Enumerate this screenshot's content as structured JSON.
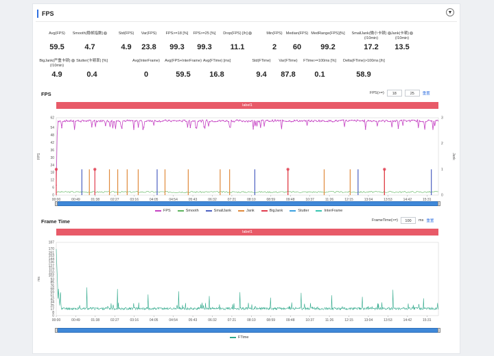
{
  "panel": {
    "title": "FPS"
  },
  "metrics_row1": [
    {
      "label": "Avg(FPS)",
      "value": "59.5",
      "help": false
    },
    {
      "label": "Smooth(稳帧指数)",
      "value": "4.7",
      "help": true
    },
    {
      "label": "Std(FPS)",
      "value": "4.9",
      "help": false
    },
    {
      "label": "Var(FPS)",
      "value": "23.8",
      "help": false
    },
    {
      "label": "FPS>=18 [%]",
      "value": "99.3",
      "help": false
    },
    {
      "label": "FPS>=25 [%]",
      "value": "99.3",
      "help": false
    },
    {
      "label": "Drop(FPS) [/h]",
      "value": "11.1",
      "help": true
    },
    {
      "label": "Min(FPS)",
      "value": "2",
      "help": false
    },
    {
      "label": "Median(FPS)",
      "value": "60",
      "help": false
    },
    {
      "label": "MedRange(FPS)[%]",
      "value": "99.2",
      "help": false
    },
    {
      "label": "SmallJank(微小卡顿)",
      "label2": "(/10min)",
      "value": "17.2",
      "help": true
    },
    {
      "label": "Jank(卡顿)",
      "label2": "(/10min)",
      "value": "13.5",
      "help": true
    }
  ],
  "metrics_row2": [
    {
      "label": "BigJank(严重卡顿)",
      "label2": "(/10min)",
      "value": "4.9",
      "help": true
    },
    {
      "label": "Stutter(卡顿率) [%]",
      "value": "0.4",
      "help": false
    },
    {
      "label": "Avg(InterFrame)",
      "value": "0",
      "help": false
    },
    {
      "label": "Avg(FPS+InterFrame)",
      "value": "59.5",
      "help": false
    },
    {
      "label": "Avg(FTime) [ms]",
      "value": "16.8",
      "help": false
    },
    {
      "label": "Std(FTime)",
      "value": "9.4",
      "help": false
    },
    {
      "label": "Var(FTime)",
      "value": "87.8",
      "help": false
    },
    {
      "label": "FTime>=100ms [%]",
      "value": "0.1",
      "help": false
    },
    {
      "label": "Delta(FTime)>100ms [/h]",
      "value": "58.9",
      "help": false
    }
  ],
  "fps_chart": {
    "title": "FPS",
    "control_label": "FPS(>=)",
    "control_values": [
      "18",
      "25"
    ],
    "reset_label": "重置",
    "label_bar": "label1",
    "ylabel": "FPS",
    "y2label": "Jank",
    "yticks": [
      "0",
      "6",
      "12",
      "18",
      "24",
      "30",
      "36",
      "42",
      "48",
      "54",
      "62"
    ],
    "y2ticks": [
      "0",
      "1",
      "2",
      "3"
    ],
    "xticks": [
      "00:00",
      "00:49",
      "01:38",
      "02:27",
      "03:16",
      "04:05",
      "04:54",
      "05:43",
      "06:32",
      "07:21",
      "08:10",
      "08:59",
      "09:48",
      "10:37",
      "11:26",
      "12:15",
      "13:04",
      "13:53",
      "14:42",
      "15:31"
    ],
    "legend": [
      {
        "name": "FPS",
        "color": "#c43fc2"
      },
      {
        "name": "Smooth",
        "color": "#5bb35b"
      },
      {
        "name": "SmallJank",
        "color": "#4a5fc1"
      },
      {
        "name": "Jank",
        "color": "#e0893a"
      },
      {
        "name": "BigJank",
        "color": "#e03a4c"
      },
      {
        "name": "Stutter",
        "color": "#3aa0e0"
      },
      {
        "name": "InterFrame",
        "color": "#35c4b0"
      }
    ]
  },
  "chart_data": [
    {
      "type": "line",
      "title": "FPS",
      "xlabel": "",
      "ylabel": "FPS",
      "ylim": [
        0,
        62
      ],
      "y2label": "Jank",
      "y2lim": [
        0,
        3
      ],
      "x": [
        "00:00",
        "00:49",
        "01:38",
        "02:27",
        "03:16",
        "04:05",
        "04:54",
        "05:43",
        "06:32",
        "07:21",
        "08:10",
        "08:59",
        "09:48",
        "10:37",
        "11:26",
        "12:15",
        "13:04",
        "13:53",
        "14:42",
        "15:31"
      ],
      "series": [
        {
          "name": "FPS",
          "values": [
            8,
            59,
            59,
            59,
            59,
            60,
            59,
            59,
            60,
            59,
            59,
            60,
            59,
            59,
            60,
            59,
            59,
            59,
            60,
            59
          ]
        },
        {
          "name": "Smooth",
          "values": [
            2,
            3,
            2,
            3,
            2,
            3,
            2,
            2,
            3,
            2,
            3,
            2,
            3,
            2,
            3,
            2,
            2,
            3,
            2,
            3
          ]
        }
      ],
      "events": {
        "SmallJank_x": [
          "01:05",
          "04:16",
          "08:24",
          "12:46",
          "15:52"
        ],
        "Jank_x": [
          "01:24",
          "02:15",
          "02:36",
          "03:00",
          "03:28",
          "04:36",
          "05:35",
          "06:56",
          "07:20",
          "09:48",
          "11:20",
          "12:26",
          "13:53"
        ],
        "BigJank_x": [
          "00:00",
          "01:38",
          "09:48",
          "13:53"
        ]
      }
    },
    {
      "type": "line",
      "title": "Frame Time",
      "xlabel": "",
      "ylabel": "ms",
      "ylim": [
        0,
        187
      ],
      "x": [
        "00:00",
        "00:49",
        "01:38",
        "02:27",
        "03:16",
        "04:05",
        "04:54",
        "05:43",
        "06:32",
        "07:21",
        "08:10",
        "08:59",
        "09:48",
        "10:37",
        "11:26",
        "12:15",
        "13:04",
        "13:53",
        "14:42",
        "15:31"
      ],
      "series": [
        {
          "name": "FTime",
          "values": [
            170,
            17,
            17,
            17,
            17,
            17,
            17,
            17,
            17,
            17,
            17,
            17,
            17,
            17,
            17,
            17,
            17,
            17,
            17,
            17
          ],
          "peaks": [
            72,
            68,
            54,
            62,
            50,
            60,
            46,
            58,
            52,
            48,
            66,
            44
          ]
        }
      ]
    }
  ],
  "ft_chart": {
    "title": "Frame Time",
    "control_label": "FrameTime(>=)",
    "control_value": "100",
    "control_unit": "ms",
    "reset_label": "重置",
    "label_bar": "label1",
    "ylabel": "ms",
    "yticks": [
      "0",
      "8",
      "17",
      "25",
      "34",
      "42",
      "51",
      "59",
      "68",
      "76",
      "85",
      "93",
      "102",
      "110",
      "119",
      "127",
      "136",
      "144",
      "153",
      "161",
      "170",
      "187"
    ],
    "xticks": [
      "00:00",
      "00:49",
      "01:38",
      "02:27",
      "03:16",
      "04:05",
      "04:54",
      "05:43",
      "06:32",
      "07:21",
      "08:10",
      "08:59",
      "09:48",
      "10:37",
      "11:26",
      "12:15",
      "13:04",
      "13:53",
      "14:42",
      "15:31"
    ],
    "legend": [
      {
        "name": "FTime",
        "color": "#2ea88a"
      }
    ]
  }
}
